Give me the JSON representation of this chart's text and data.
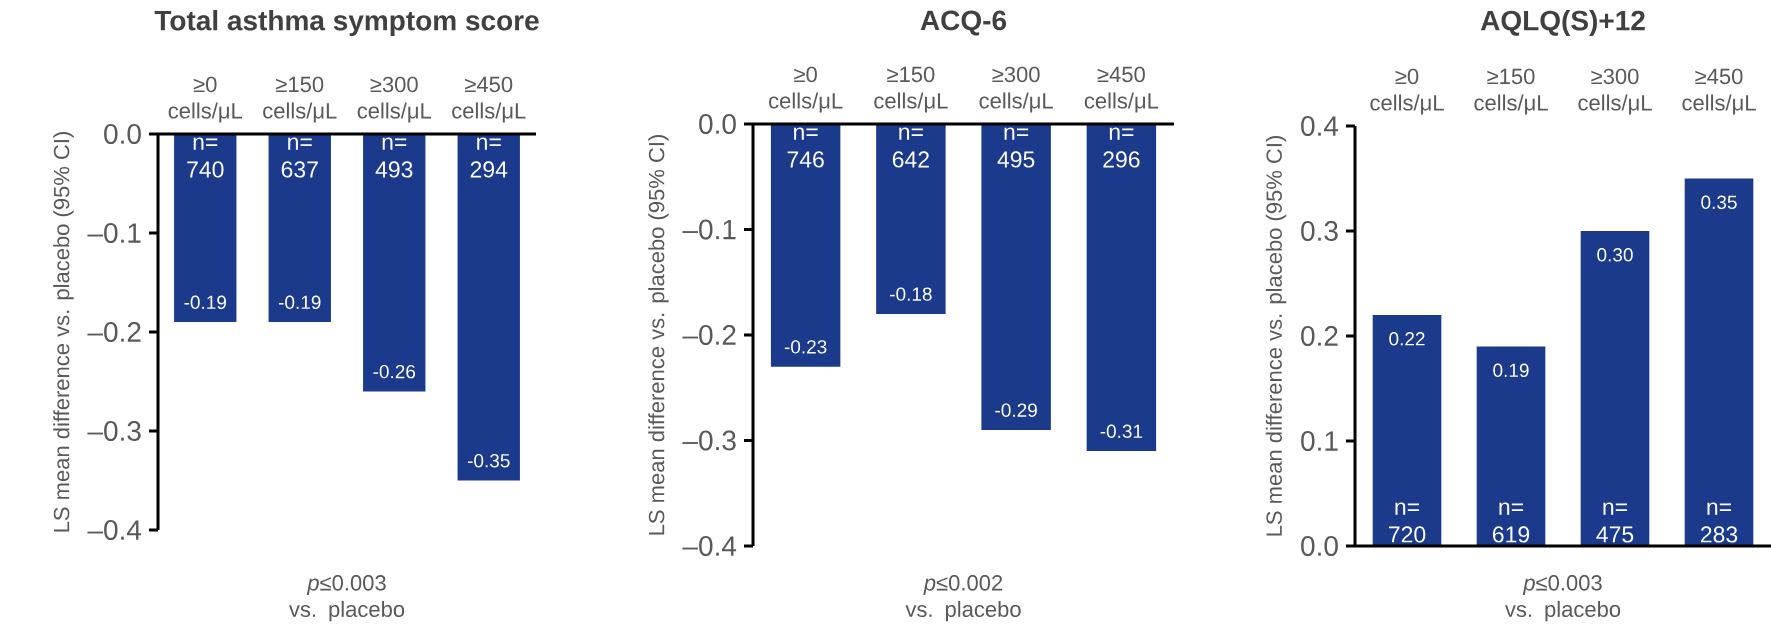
{
  "chart_data": [
    {
      "type": "bar",
      "title": "Total asthma symptom score",
      "ylabel": "LS mean difference vs. placebo (95% CI)",
      "categories": [
        "≥0 cells/μL",
        "≥150 cells/μL",
        "≥300 cells/μL",
        "≥450 cells/μL"
      ],
      "values": [
        -0.19,
        -0.19,
        -0.26,
        -0.35
      ],
      "value_labels": [
        "-0.19",
        "-0.19",
        "-0.26",
        "-0.35"
      ],
      "color": "#1b3a8c",
      "ylim": [
        -0.4,
        0
      ],
      "yticks": [
        {
          "value": -0.4,
          "label": "–0.4"
        },
        {
          "value": -0.3,
          "label": "–0.3"
        },
        {
          "value": -0.2,
          "label": "–0.2"
        },
        {
          "value": -0.1,
          "label": "–0.1"
        },
        {
          "value": 0,
          "label": "0.0"
        }
      ],
      "annotations": [
        {
          "text": "n= 740",
          "x": "≥0 cells/μL",
          "y": 0
        },
        {
          "text": "n= 637",
          "x": "≥150 cells/μL",
          "y": 0
        },
        {
          "text": "n= 493",
          "x": "≥300 cells/μL",
          "y": 0
        },
        {
          "text": "n= 294",
          "x": "≥450 cells/μL",
          "y": 0
        },
        "*p*≤0.003 vs. placebo"
      ]
    },
    {
      "type": "bar",
      "title": "ACQ-6",
      "ylabel": "LS mean difference vs. placebo (95% CI)",
      "categories": [
        "≥0 cells/μL",
        "≥150 cells/μL",
        "≥300 cells/μL",
        "≥450 cells/μL"
      ],
      "values": [
        -0.23,
        -0.18,
        -0.29,
        -0.31
      ],
      "value_labels": [
        "-0.23",
        "-0.18",
        "-0.29",
        "-0.31"
      ],
      "color": "#1b3a8c",
      "ylim": [
        -0.4,
        0
      ],
      "yticks": [
        {
          "value": -0.4,
          "label": "–0.4"
        },
        {
          "value": -0.3,
          "label": "–0.3"
        },
        {
          "value": -0.2,
          "label": "–0.2"
        },
        {
          "value": -0.1,
          "label": "–0.1"
        },
        {
          "value": 0,
          "label": "0.0"
        }
      ],
      "annotations": [
        {
          "text": "n= 746",
          "x": "≥0 cells/μL",
          "y": 0
        },
        {
          "text": "n= 642",
          "x": "≥150 cells/μL",
          "y": 0
        },
        {
          "text": "n= 495",
          "x": "≥300 cells/μL",
          "y": 0
        },
        {
          "text": "n= 296",
          "x": "≥450 cells/μL",
          "y": 0
        },
        "*p*≤0.002 vs. placebo"
      ]
    },
    {
      "type": "bar",
      "title": "AQLQ(S)+12",
      "ylabel": "LS mean difference vs. placebo (95% CI)",
      "categories": [
        "≥0 cells/μL",
        "≥150 cells/μL",
        "≥300 cells/μL",
        "≥450 cells/μL"
      ],
      "values": [
        0.22,
        0.19,
        0.3,
        0.35
      ],
      "value_labels": [
        "0.22",
        "0.19",
        "0.30",
        "0.35"
      ],
      "color": "#1b3a8c",
      "ylim": [
        0,
        0.4
      ],
      "yticks": [
        {
          "value": 0,
          "label": "0.0"
        },
        {
          "value": 0.1,
          "label": "0.1"
        },
        {
          "value": 0.2,
          "label": "0.2"
        },
        {
          "value": 0.3,
          "label": "0.3"
        },
        {
          "value": 0.4,
          "label": "0.4"
        }
      ],
      "annotations": [
        {
          "text": "n= 720",
          "x": "≥0 cells/μL",
          "y": 0
        },
        {
          "text": "n= 619",
          "x": "≥150 cells/μL",
          "y": 0
        },
        {
          "text": "n= 475",
          "x": "≥300 cells/μL",
          "y": 0
        },
        {
          "text": "n= 283",
          "x": "≥450 cells/μL",
          "y": 0
        },
        "*p*≤0.003 vs. placebo"
      ]
    }
  ]
}
